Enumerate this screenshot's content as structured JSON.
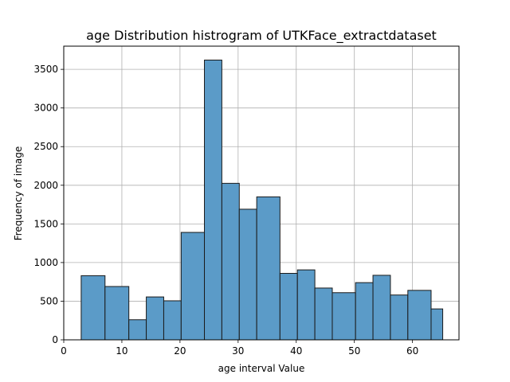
{
  "chart_data": {
    "type": "bar",
    "title": "age Distribution histrogram of UTKFace_extractdataset",
    "xlabel": "age interval Value",
    "ylabel": "Frequency of image",
    "xlim": [
      0,
      68
    ],
    "ylim": [
      0,
      3800
    ],
    "xticks": [
      0,
      10,
      20,
      30,
      40,
      50,
      60
    ],
    "yticks": [
      0,
      500,
      1000,
      1500,
      2000,
      2500,
      3000,
      3500
    ],
    "grid": true,
    "bar_color": "#5b9bc8",
    "edge_color": "#1a1a1a",
    "bins": [
      {
        "start": 3.0,
        "end": 7.1,
        "value": 830
      },
      {
        "start": 7.1,
        "end": 11.2,
        "value": 690
      },
      {
        "start": 11.2,
        "end": 14.2,
        "value": 260
      },
      {
        "start": 14.2,
        "end": 17.2,
        "value": 555
      },
      {
        "start": 17.2,
        "end": 20.2,
        "value": 505
      },
      {
        "start": 20.2,
        "end": 24.2,
        "value": 1390
      },
      {
        "start": 24.2,
        "end": 27.2,
        "value": 3620
      },
      {
        "start": 27.2,
        "end": 30.2,
        "value": 2025
      },
      {
        "start": 30.2,
        "end": 33.2,
        "value": 1690
      },
      {
        "start": 33.2,
        "end": 37.2,
        "value": 1850
      },
      {
        "start": 37.2,
        "end": 40.2,
        "value": 860
      },
      {
        "start": 40.2,
        "end": 43.2,
        "value": 905
      },
      {
        "start": 43.2,
        "end": 46.2,
        "value": 670
      },
      {
        "start": 46.2,
        "end": 50.2,
        "value": 610
      },
      {
        "start": 50.2,
        "end": 53.2,
        "value": 740
      },
      {
        "start": 53.2,
        "end": 56.2,
        "value": 835
      },
      {
        "start": 56.2,
        "end": 59.2,
        "value": 580
      },
      {
        "start": 59.2,
        "end": 63.2,
        "value": 640
      },
      {
        "start": 63.2,
        "end": 65.2,
        "value": 400
      }
    ]
  }
}
